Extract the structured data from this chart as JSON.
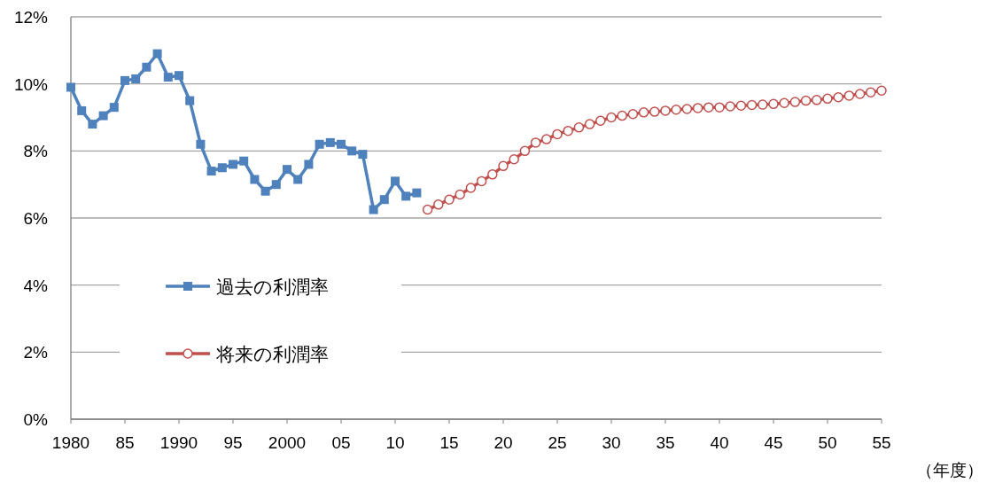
{
  "chart_data": {
    "type": "line",
    "xlabel": "（年度）",
    "xlim": [
      1980,
      2055
    ],
    "xticks": [
      {
        "value": 1980,
        "label": "1980"
      },
      {
        "value": 1985,
        "label": "85"
      },
      {
        "value": 1990,
        "label": "1990"
      },
      {
        "value": 1995,
        "label": "95"
      },
      {
        "value": 2000,
        "label": "2000"
      },
      {
        "value": 2005,
        "label": "05"
      },
      {
        "value": 2010,
        "label": "10"
      },
      {
        "value": 2015,
        "label": "15"
      },
      {
        "value": 2020,
        "label": "20"
      },
      {
        "value": 2025,
        "label": "25"
      },
      {
        "value": 2030,
        "label": "30"
      },
      {
        "value": 2035,
        "label": "35"
      },
      {
        "value": 2040,
        "label": "40"
      },
      {
        "value": 2045,
        "label": "45"
      },
      {
        "value": 2050,
        "label": "50"
      },
      {
        "value": 2055,
        "label": "55"
      }
    ],
    "ylim": [
      0,
      12
    ],
    "yticks": [
      {
        "value": 0,
        "label": "0%"
      },
      {
        "value": 2,
        "label": "2%"
      },
      {
        "value": 4,
        "label": "4%"
      },
      {
        "value": 6,
        "label": "6%"
      },
      {
        "value": 8,
        "label": "8%"
      },
      {
        "value": 10,
        "label": "10%"
      },
      {
        "value": 12,
        "label": "12%"
      }
    ],
    "grid": "y",
    "legend": "left",
    "series": [
      {
        "name": "過去の利潤率",
        "color": "#4f81bd",
        "marker": "square",
        "x": [
          1980,
          1981,
          1982,
          1983,
          1984,
          1985,
          1986,
          1987,
          1988,
          1989,
          1990,
          1991,
          1992,
          1993,
          1994,
          1995,
          1996,
          1997,
          1998,
          1999,
          2000,
          2001,
          2002,
          2003,
          2004,
          2005,
          2006,
          2007,
          2008,
          2009,
          2010,
          2011,
          2012
        ],
        "values": [
          9.9,
          9.2,
          8.8,
          9.05,
          9.3,
          10.1,
          10.15,
          10.5,
          10.9,
          10.2,
          10.25,
          9.5,
          8.2,
          7.4,
          7.5,
          7.6,
          7.7,
          7.15,
          6.8,
          7.0,
          7.45,
          7.15,
          7.6,
          8.2,
          8.25,
          8.2,
          8.0,
          7.9,
          6.25,
          6.55,
          7.1,
          6.65,
          6.75
        ]
      },
      {
        "name": "将来の利潤率",
        "color": "#c0504d",
        "marker": "circle",
        "x": [
          2013,
          2014,
          2015,
          2016,
          2017,
          2018,
          2019,
          2020,
          2021,
          2022,
          2023,
          2024,
          2025,
          2026,
          2027,
          2028,
          2029,
          2030,
          2031,
          2032,
          2033,
          2034,
          2035,
          2036,
          2037,
          2038,
          2039,
          2040,
          2041,
          2042,
          2043,
          2044,
          2045,
          2046,
          2047,
          2048,
          2049,
          2050,
          2051,
          2052,
          2053,
          2054,
          2055
        ],
        "values": [
          6.25,
          6.4,
          6.55,
          6.7,
          6.9,
          7.1,
          7.3,
          7.55,
          7.75,
          8.0,
          8.25,
          8.35,
          8.5,
          8.6,
          8.7,
          8.8,
          8.9,
          9.0,
          9.05,
          9.1,
          9.15,
          9.17,
          9.2,
          9.23,
          9.25,
          9.28,
          9.3,
          9.3,
          9.33,
          9.35,
          9.37,
          9.38,
          9.4,
          9.43,
          9.46,
          9.5,
          9.52,
          9.56,
          9.6,
          9.65,
          9.7,
          9.75,
          9.8
        ]
      }
    ]
  }
}
